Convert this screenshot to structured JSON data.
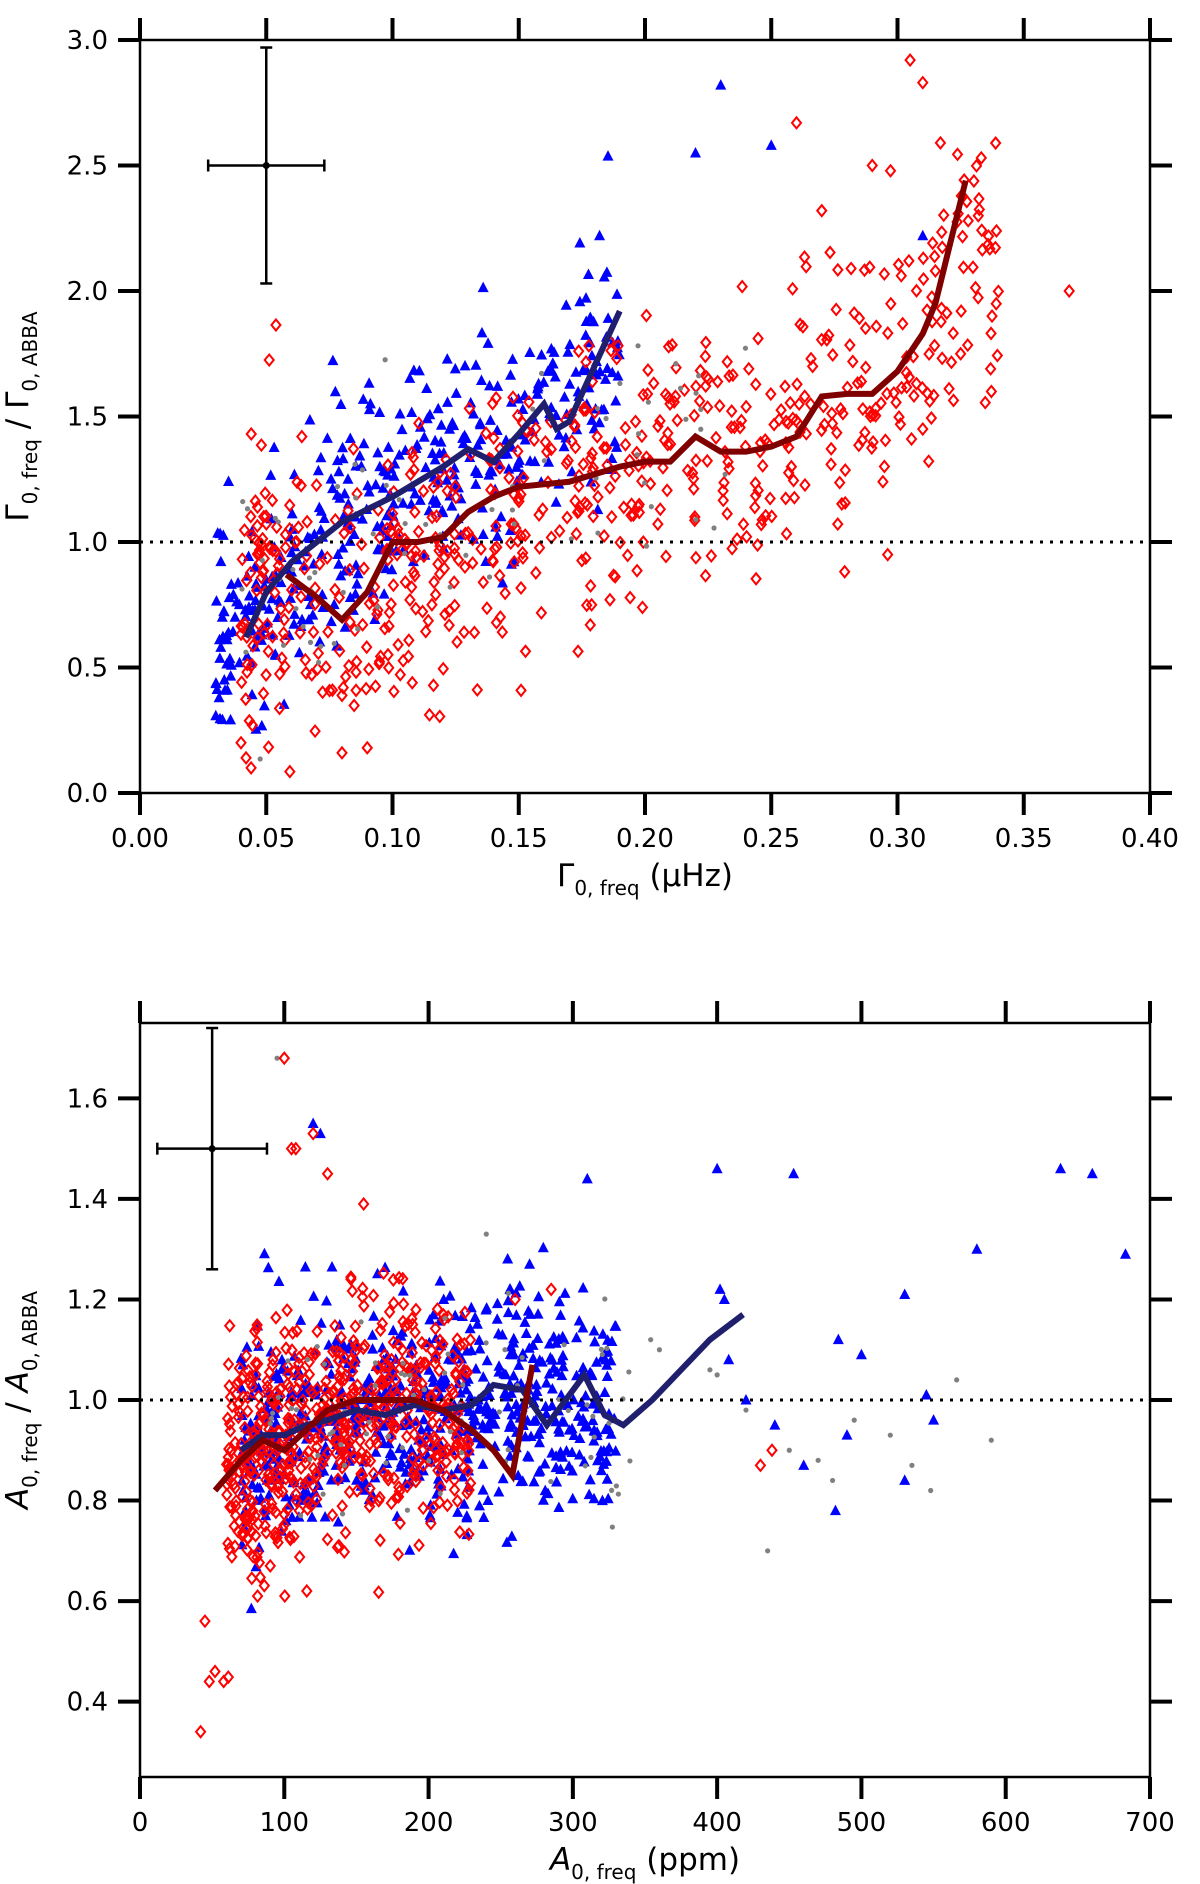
{
  "chart_data": [
    {
      "type": "scatter",
      "id": "top",
      "xlabel": {
        "main": "Γ",
        "sub": "0, freq",
        "unit": " (μHz)"
      },
      "ylabel": {
        "num": "Γ",
        "num_sub": "0, freq",
        "sep": " / ",
        "den": "Γ",
        "den_sub": "0, ABBA"
      },
      "xlim": [
        0.0,
        0.4
      ],
      "ylim": [
        0.0,
        3.0
      ],
      "xticks": [
        0.0,
        0.05,
        0.1,
        0.15,
        0.2,
        0.25,
        0.3,
        0.35,
        0.4
      ],
      "xtick_labels": [
        "0.00",
        "0.05",
        "0.10",
        "0.15",
        "0.20",
        "0.25",
        "0.30",
        "0.35",
        "0.40"
      ],
      "yticks": [
        0.0,
        0.5,
        1.0,
        1.5,
        2.0,
        2.5,
        3.0
      ],
      "ytick_labels": [
        "0.0",
        "0.5",
        "1.0",
        "1.5",
        "2.0",
        "2.5",
        "3.0"
      ],
      "reference_line_y": 1.0,
      "error_bar": {
        "x": 0.05,
        "y": 2.5,
        "x_err": 0.023,
        "y_err": 0.47
      },
      "series": [
        {
          "name": "Blue triangles",
          "marker": "triangle",
          "color": "#0000ff",
          "points": "generated-cloud",
          "cloud": {
            "n": 420,
            "x_range": [
              0.03,
              0.19
            ],
            "trend": [
              [
                0.04,
                0.62
              ],
              [
                0.07,
                1.0
              ],
              [
                0.1,
                1.2
              ],
              [
                0.13,
                1.35
              ],
              [
                0.16,
                1.5
              ],
              [
                0.19,
                1.75
              ]
            ],
            "spread": 0.22,
            "seed": 7
          }
        },
        {
          "name": "Red diamonds",
          "marker": "diamond",
          "color": "#ff0000",
          "points": "generated-cloud",
          "cloud": {
            "n": 650,
            "x_range": [
              0.04,
              0.34
            ],
            "trend": [
              [
                0.04,
                0.85
              ],
              [
                0.08,
                0.7
              ],
              [
                0.12,
                1.0
              ],
              [
                0.16,
                1.22
              ],
              [
                0.2,
                1.32
              ],
              [
                0.25,
                1.38
              ],
              [
                0.3,
                1.65
              ],
              [
                0.33,
                2.2
              ]
            ],
            "spread": 0.3,
            "seed": 11
          }
        },
        {
          "name": "Grey dots",
          "marker": "dot",
          "color": "#808080",
          "points": "generated-cloud",
          "cloud": {
            "n": 70,
            "x_range": [
              0.04,
              0.24
            ],
            "trend": [
              [
                0.04,
                0.8
              ],
              [
                0.1,
                1.1
              ],
              [
                0.17,
                1.3
              ],
              [
                0.24,
                1.5
              ]
            ],
            "spread": 0.3,
            "seed": 3
          }
        },
        {
          "name": "Red outliers",
          "marker": "diamond",
          "color": "#ff0000",
          "x": [
            0.04,
            0.042,
            0.044,
            0.08,
            0.09,
            0.27,
            0.29,
            0.305,
            0.31,
            0.315,
            0.317,
            0.325,
            0.328,
            0.332,
            0.368,
            0.26,
            0.31
          ],
          "y": [
            0.2,
            0.14,
            0.1,
            0.16,
            0.18,
            2.32,
            2.5,
            2.92,
            2.83,
            2.08,
            2.59,
            1.75,
            2.28,
            2.3,
            2.0,
            2.67,
            1.45
          ]
        },
        {
          "name": "Blue outliers",
          "marker": "triangle",
          "color": "#0000ff",
          "x": [
            0.23,
            0.22,
            0.25,
            0.182,
            0.31,
            0.032
          ],
          "y": [
            2.82,
            2.55,
            2.58,
            2.22,
            2.22,
            0.58
          ]
        },
        {
          "name": "Blue running mean",
          "marker": "line",
          "color": "#1f1f6e",
          "x": [
            0.042,
            0.05,
            0.06,
            0.07,
            0.08,
            0.09,
            0.1,
            0.11,
            0.12,
            0.13,
            0.14,
            0.15,
            0.16,
            0.165,
            0.17,
            0.18,
            0.19
          ],
          "y": [
            0.62,
            0.8,
            0.92,
            1.0,
            1.08,
            1.13,
            1.18,
            1.24,
            1.3,
            1.37,
            1.32,
            1.43,
            1.55,
            1.45,
            1.48,
            1.7,
            1.92
          ]
        },
        {
          "name": "Red running mean",
          "marker": "line",
          "color": "#800000",
          "x": [
            0.058,
            0.07,
            0.08,
            0.09,
            0.1,
            0.11,
            0.12,
            0.13,
            0.14,
            0.15,
            0.16,
            0.17,
            0.18,
            0.19,
            0.2,
            0.21,
            0.22,
            0.23,
            0.24,
            0.25,
            0.26,
            0.27,
            0.28,
            0.29,
            0.3,
            0.31,
            0.315,
            0.327
          ],
          "y": [
            0.87,
            0.78,
            0.69,
            0.8,
            1.0,
            1.0,
            1.02,
            1.12,
            1.18,
            1.22,
            1.23,
            1.24,
            1.27,
            1.3,
            1.32,
            1.32,
            1.42,
            1.36,
            1.36,
            1.38,
            1.42,
            1.58,
            1.59,
            1.59,
            1.68,
            1.83,
            1.95,
            2.44
          ]
        }
      ]
    },
    {
      "type": "scatter",
      "id": "bottom",
      "xlabel": {
        "main": "A",
        "sub": "0, freq",
        "unit": " (ppm)"
      },
      "ylabel": {
        "num": "A",
        "num_sub": "0, freq",
        "sep": " / ",
        "den": "A",
        "den_sub": "0, ABBA"
      },
      "xlim": [
        0,
        700
      ],
      "ylim": [
        0.25,
        1.75
      ],
      "xticks": [
        0,
        100,
        200,
        300,
        400,
        500,
        600,
        700
      ],
      "xtick_labels": [
        "0",
        "100",
        "200",
        "300",
        "400",
        "500",
        "600",
        "700"
      ],
      "yticks": [
        0.4,
        0.6,
        0.8,
        1.0,
        1.2,
        1.4,
        1.6
      ],
      "ytick_labels": [
        "0.4",
        "0.6",
        "0.8",
        "1.0",
        "1.2",
        "1.4",
        "1.6"
      ],
      "reference_line_y": 1.0,
      "error_bar": {
        "x": 50,
        "y": 1.5,
        "x_err": 38,
        "y_err": 0.24
      },
      "series": [
        {
          "name": "Blue triangles",
          "marker": "triangle",
          "color": "#0000ff",
          "points": "generated-cloud",
          "cloud": {
            "n": 700,
            "x_range": [
              70,
              330
            ],
            "trend": [
              [
                70,
                0.92
              ],
              [
                150,
                0.97
              ],
              [
                250,
                1.02
              ],
              [
                330,
                0.98
              ]
            ],
            "spread": 0.11,
            "seed": 21
          }
        },
        {
          "name": "Red diamonds",
          "marker": "diamond",
          "color": "#ff0000",
          "points": "generated-cloud",
          "cloud": {
            "n": 600,
            "x_range": [
              60,
              230
            ],
            "trend": [
              [
                60,
                0.86
              ],
              [
                100,
                0.92
              ],
              [
                150,
                0.98
              ],
              [
                200,
                0.98
              ],
              [
                230,
                0.95
              ]
            ],
            "spread": 0.12,
            "seed": 31
          }
        },
        {
          "name": "Grey dots",
          "marker": "dot",
          "color": "#808080",
          "points": "generated-cloud",
          "cloud": {
            "n": 80,
            "x_range": [
              90,
              360
            ],
            "trend": [
              [
                90,
                0.95
              ],
              [
                200,
                1.0
              ],
              [
                360,
                0.97
              ]
            ],
            "spread": 0.1,
            "seed": 5
          }
        },
        {
          "name": "Blue outliers",
          "marker": "triangle",
          "color": "#0000ff",
          "x": [
            400,
            402,
            405,
            408,
            420,
            440,
            453,
            460,
            482,
            484,
            490,
            500,
            530,
            545,
            580,
            638,
            660,
            683,
            550,
            530,
            310,
            270,
            120,
            125
          ],
          "y": [
            1.46,
            1.22,
            1.2,
            1.08,
            1.0,
            0.95,
            1.45,
            0.87,
            0.78,
            1.12,
            0.93,
            1.09,
            1.21,
            1.01,
            1.3,
            1.46,
            1.45,
            1.29,
            0.96,
            0.84,
            1.44,
            1.27,
            1.55,
            1.53
          ],
          "note": "sparse high-amplitude points"
        },
        {
          "name": "Grey outliers",
          "marker": "dot",
          "color": "#808080",
          "x": [
            95,
            240,
            360,
            395,
            400,
            420,
            435,
            450,
            470,
            480,
            495,
            520,
            535,
            548,
            566,
            590
          ],
          "y": [
            1.68,
            1.33,
            1.1,
            1.06,
            1.05,
            0.98,
            0.7,
            0.9,
            0.88,
            0.84,
            0.96,
            0.93,
            0.87,
            0.82,
            1.04,
            0.92
          ]
        },
        {
          "name": "Red outliers",
          "marker": "diamond",
          "color": "#ff0000",
          "x": [
            42,
            45,
            48,
            52,
            58,
            100,
            105,
            108,
            120,
            130,
            155,
            438,
            430,
            285,
            260
          ],
          "y": [
            0.34,
            0.56,
            0.44,
            0.46,
            0.44,
            1.68,
            1.5,
            1.5,
            1.53,
            1.45,
            1.39,
            0.9,
            0.87,
            1.22,
            1.2
          ]
        },
        {
          "name": "Blue running mean",
          "marker": "line",
          "color": "#1f1f6e",
          "x": [
            70,
            85,
            100,
            115,
            130,
            150,
            170,
            190,
            210,
            230,
            245,
            265,
            282,
            295,
            308,
            322,
            335,
            355,
            375,
            395,
            418
          ],
          "y": [
            0.9,
            0.93,
            0.93,
            0.95,
            0.96,
            0.98,
            0.97,
            0.99,
            0.98,
            0.99,
            1.03,
            1.02,
            0.95,
            1.0,
            1.05,
            0.97,
            0.95,
            1.0,
            1.06,
            1.12,
            1.17
          ]
        },
        {
          "name": "Red running mean",
          "marker": "line",
          "color": "#800000",
          "x": [
            52,
            70,
            85,
            100,
            115,
            130,
            150,
            170,
            190,
            210,
            230,
            245,
            258,
            272
          ],
          "y": [
            0.82,
            0.88,
            0.92,
            0.9,
            0.94,
            0.98,
            1.0,
            1.0,
            1.0,
            0.98,
            0.94,
            0.9,
            0.85,
            1.07
          ]
        }
      ]
    }
  ]
}
